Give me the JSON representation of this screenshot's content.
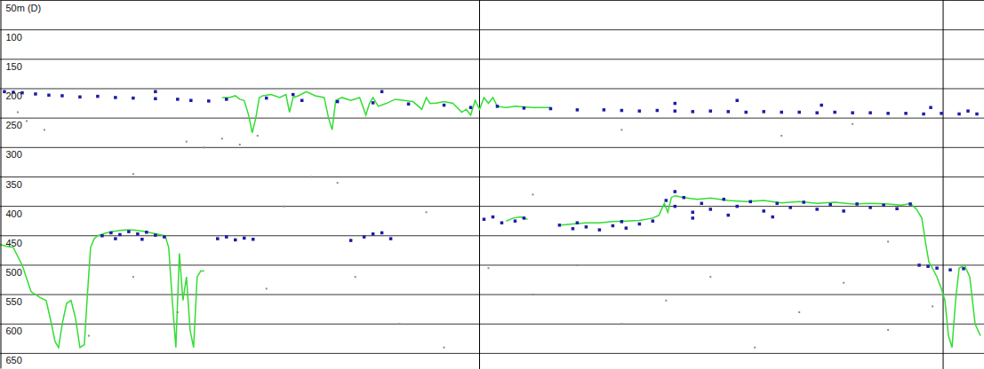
{
  "chart_data": {
    "type": "line",
    "xlim": [
      0,
      1107
    ],
    "ylim": [
      50,
      675
    ],
    "xticks": [
      540,
      1062
    ],
    "yticks": [
      {
        "value": 50,
        "label": "50m (D)"
      },
      100,
      150,
      200,
      250,
      300,
      350,
      400,
      450,
      500,
      550,
      600,
      650
    ],
    "grid": true,
    "tick_labels": "y",
    "series": [
      {
        "type": "line",
        "color": "#33dd33",
        "x": [
          0,
          8,
          15,
          25,
          35,
          45,
          52,
          58,
          62,
          66,
          70,
          75,
          80,
          85,
          90,
          95,
          98,
          102,
          106,
          110,
          120,
          130,
          140,
          150,
          160,
          170,
          180,
          186,
          190,
          194,
          198,
          202,
          206,
          210,
          214,
          218,
          222,
          226,
          230
        ],
        "values": [
          465,
          468,
          470,
          500,
          545,
          555,
          560,
          600,
          630,
          640,
          600,
          565,
          560,
          590,
          640,
          635,
          560,
          470,
          455,
          450,
          445,
          442,
          440,
          440,
          442,
          445,
          448,
          450,
          470,
          560,
          640,
          480,
          560,
          520,
          610,
          640,
          520,
          510,
          510
        ]
      },
      {
        "type": "line",
        "color": "#33dd33",
        "x": [
          250,
          258,
          265,
          270,
          275,
          280,
          284,
          288,
          292,
          296,
          305,
          315,
          322,
          326,
          330,
          336,
          345,
          355,
          365,
          370,
          374,
          378,
          385,
          395,
          405,
          412,
          416,
          420,
          426,
          435,
          445,
          455,
          465,
          475,
          480,
          484,
          490,
          500,
          510,
          520,
          525,
          530,
          535,
          540,
          545,
          550,
          555,
          560,
          570,
          580,
          600,
          620
        ],
        "values": [
          215,
          215,
          212,
          218,
          220,
          245,
          275,
          250,
          215,
          212,
          210,
          215,
          210,
          240,
          215,
          212,
          205,
          212,
          215,
          250,
          270,
          220,
          215,
          220,
          215,
          245,
          225,
          215,
          230,
          225,
          218,
          220,
          222,
          235,
          215,
          225,
          225,
          222,
          225,
          240,
          235,
          245,
          220,
          235,
          215,
          225,
          215,
          230,
          232,
          230,
          232,
          232
        ]
      },
      {
        "type": "line",
        "color": "#33dd33",
        "x": [
          570,
          578,
          586,
          594,
          600,
          632,
          645,
          660,
          675,
          690,
          705,
          720,
          735,
          742,
          748,
          752,
          756,
          760,
          770,
          785,
          800,
          820,
          840,
          860,
          880,
          900,
          920,
          940,
          960,
          980,
          1000,
          1015,
          1025,
          1032,
          1038,
          1042,
          1046,
          1050,
          1055,
          1060,
          1064,
          1068,
          1072,
          1076,
          1080,
          1086,
          1092,
          1098,
          1104
        ],
        "values": [
          425,
          420,
          418,
          422,
          null,
          432,
          430,
          428,
          428,
          426,
          425,
          424,
          420,
          415,
          395,
          410,
          385,
          382,
          385,
          388,
          386,
          390,
          392,
          390,
          394,
          392,
          395,
          393,
          396,
          395,
          396,
          398,
          395,
          405,
          420,
          460,
          495,
          505,
          520,
          540,
          560,
          620,
          640,
          560,
          505,
          500,
          520,
          600,
          620
        ]
      },
      {
        "type": "scatter",
        "color": "#1c1ca8",
        "marker": "square",
        "x": [
          5,
          15,
          25,
          40,
          55,
          70,
          90,
          110,
          130,
          150,
          175,
          200,
          215,
          235,
          255,
          300,
          340,
          380,
          420,
          460,
          500,
          530,
          560,
          590,
          620,
          650,
          680,
          700,
          720,
          740,
          760,
          780,
          800,
          820,
          840,
          860,
          880,
          900,
          920,
          940,
          960,
          980,
          1000,
          1020,
          1040,
          1060,
          1080,
          1100,
          760,
          830,
          925,
          1048,
          1090,
          175,
          330,
          430,
          115,
          125,
          135,
          145,
          155,
          165,
          175,
          185,
          130,
          160,
          245,
          255,
          265,
          275,
          285,
          395,
          410,
          420,
          430,
          440,
          545,
          555,
          565,
          580,
          590,
          630,
          645,
          660,
          675,
          690,
          705,
          720,
          735,
          650,
          700,
          750,
          760,
          770,
          780,
          790,
          800,
          815,
          830,
          845,
          860,
          875,
          890,
          905,
          920,
          935,
          950,
          965,
          980,
          995,
          1010,
          1025,
          780,
          820,
          870,
          760,
          1035,
          1045,
          1055,
          1070,
          1085
        ],
        "values": [
          205,
          206,
          207,
          209,
          211,
          212,
          214,
          213,
          215,
          216,
          217,
          218,
          220,
          221,
          218,
          216,
          220,
          222,
          224,
          226,
          228,
          232,
          230,
          233,
          234,
          236,
          236,
          237,
          238,
          237,
          238,
          239,
          238,
          239,
          240,
          239,
          240,
          240,
          241,
          240,
          241,
          241,
          242,
          242,
          243,
          242,
          243,
          243,
          225,
          220,
          228,
          232,
          238,
          205,
          210,
          205,
          450,
          445,
          448,
          443,
          447,
          444,
          449,
          452,
          455,
          456,
          455,
          452,
          457,
          454,
          456,
          458,
          452,
          447,
          445,
          455,
          422,
          418,
          428,
          425,
          420,
          432,
          438,
          435,
          440,
          433,
          437,
          430,
          425,
          428,
          426,
          390,
          400,
          385,
          410,
          395,
          405,
          388,
          400,
          392,
          408,
          395,
          402,
          393,
          405,
          397,
          408,
          396,
          402,
          398,
          404,
          396,
          420,
          415,
          418,
          375,
          500,
          502,
          505,
          508,
          506
        ]
      },
      {
        "type": "scatter",
        "color": "#8c8c8c",
        "marker": "square",
        "x": [
          20,
          30,
          50,
          210,
          230,
          250,
          270,
          290,
          350,
          380,
          300,
          400,
          600,
          700,
          800,
          900,
          1000,
          100,
          200,
          500,
          650,
          850,
          950,
          1050,
          450,
          150,
          550,
          750,
          320,
          600,
          880,
          960,
          700,
          150,
          480,
          1000
        ],
        "values": [
          240,
          255,
          270,
          290,
          300,
          285,
          295,
          280,
          350,
          360,
          540,
          520,
          550,
          600,
          520,
          580,
          610,
          620,
          580,
          640,
          500,
          640,
          530,
          570,
          600,
          520,
          505,
          560,
          400,
          380,
          280,
          260,
          270,
          345,
          410,
          460
        ]
      }
    ]
  }
}
